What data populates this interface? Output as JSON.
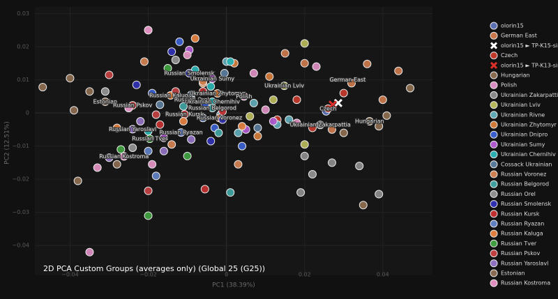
{
  "chart_data": {
    "type": "scatter",
    "title": "2D PCA Custom Groups (averages only) (Global 25 (G25))",
    "x_label": "PC1 (38.39%)",
    "y_label": "PC2 (12.51%)",
    "xlim": [
      -0.049,
      0.0527
    ],
    "ylim": [
      -0.049,
      0.032
    ],
    "xticks": [
      {
        "value": -0.04,
        "label": "−0.04"
      },
      {
        "value": -0.02,
        "label": "−0.02"
      },
      0,
      0.02,
      0.04
    ],
    "yticks": [
      {
        "value": -0.04,
        "label": "−0.04"
      },
      {
        "value": -0.03,
        "label": "−0.03"
      },
      {
        "value": -0.02,
        "label": "−0.02"
      },
      {
        "value": -0.01,
        "label": "−0.01"
      },
      0,
      0.01,
      0.02,
      0.03
    ],
    "grid": true,
    "legend": "right",
    "series": [
      {
        "name": "olorin15",
        "color": "#5b6fb5",
        "x": [
          0.0255
        ],
        "y": [
          0.0005
        ]
      },
      {
        "name": "German East",
        "color": "#c8764a",
        "x": [
          0.032,
          0.036,
          0.044,
          0.02,
          0.015,
          0.04,
          0.027
        ],
        "y": [
          0.009,
          0.0148,
          0.0127,
          0.015,
          0.018,
          0.004,
          -0.005
        ]
      },
      {
        "name": "olorin15 ► TP-K15-sim",
        "color": "#ffffff",
        "symbol": "x",
        "x": [
          0.0286
        ],
        "y": [
          0.003
        ]
      },
      {
        "name": "Czech",
        "color": "#c0392b",
        "x": [
          0.026,
          0.022,
          0.018,
          0.03,
          0.013
        ],
        "y": [
          0.0013,
          -0.0045,
          0.004,
          0.006,
          -0.002
        ]
      },
      {
        "name": "olorin15 ► TP-K13-sim",
        "color": "#e0302a",
        "symbol": "x",
        "x": [
          0.0272
        ],
        "y": [
          0.0025
        ]
      },
      {
        "name": "Hungarian",
        "color": "#8b6b4f",
        "x": [
          0.0366,
          0.047,
          0.035,
          0.041,
          0.039,
          0.03,
          -0.04,
          -0.047,
          -0.038
        ],
        "y": [
          -0.0025,
          0.0075,
          -0.0278,
          -0.0008,
          -0.004,
          -0.006,
          0.0105,
          0.0078,
          -0.0205
        ]
      },
      {
        "name": "Polish",
        "color": "#d98cc0",
        "x": [
          0.0045,
          0.01,
          0.023,
          0.018,
          0.007,
          -0.035,
          -0.02
        ],
        "y": [
          0.005,
          0.001,
          0.014,
          -0.003,
          0.012,
          -0.042,
          0.025
        ]
      },
      {
        "name": "Ukrainian Zakarpattia",
        "color": "#8a8a8a",
        "x": [
          0.024,
          0.019,
          0.034,
          0.039,
          0.02,
          0.027
        ],
        "y": [
          -0.0036,
          -0.024,
          -0.016,
          -0.0245,
          -0.013,
          -0.015
        ]
      },
      {
        "name": "Ukrainian Lviv",
        "color": "#b5b55a",
        "x": [
          0.0148,
          0.006,
          0.02,
          0.012,
          0.02
        ],
        "y": [
          0.0082,
          -0.001,
          0.021,
          0.004,
          -0.0095
        ]
      },
      {
        "name": "Ukrainian Rivne",
        "color": "#5fa8b5",
        "x": [
          0.007,
          0.013,
          0.0,
          0.016,
          0.003
        ],
        "y": [
          0.003,
          -0.0035,
          0.0155,
          -0.002,
          -0.006
        ]
      },
      {
        "name": "Ukrainian Zhytomyr",
        "color": "#d07a3a",
        "x": [
          -0.0023,
          0.002,
          0.008,
          -0.006,
          0.011
        ],
        "y": [
          0.0059,
          0.015,
          -0.007,
          0.009,
          0.011
        ]
      },
      {
        "name": "Ukrainian Dnipro",
        "color": "#3a5fcd",
        "x": [
          -0.0055,
          -0.012,
          -0.003,
          0.004,
          -0.019
        ],
        "y": [
          0.0025,
          0.0215,
          -0.0045,
          -0.01,
          0.006
        ]
      },
      {
        "name": "Ukrainian Sumy",
        "color": "#b05ad0",
        "x": [
          -0.0036,
          -0.0095,
          0.005,
          -0.016,
          0.012
        ],
        "y": [
          0.0103,
          0.019,
          -0.005,
          -0.0075,
          -0.0025
        ]
      },
      {
        "name": "Ukrainian Chernihiv",
        "color": "#2ab0b0",
        "x": [
          -0.0036,
          -0.008,
          0.001,
          -0.02,
          -0.004
        ],
        "y": [
          0.0034,
          0.013,
          0.0155,
          -0.0055,
          0.008
        ]
      },
      {
        "name": "Cossack Ukrainian",
        "color": "#5a7a9a",
        "x": [
          -0.0015,
          -0.009,
          0.008,
          -0.0005,
          -0.017
        ],
        "y": [
          -0.0005,
          0.0055,
          -0.0045,
          0.012,
          0.0025
        ]
      },
      {
        "name": "Russian Voronez",
        "color": "#d08050",
        "x": [
          -0.0018,
          -0.014,
          -0.006,
          0.003,
          -0.021
        ],
        "y": [
          -0.0015,
          -0.0095,
          0.0095,
          -0.0155,
          0.0155
        ]
      },
      {
        "name": "Russian Belgorod",
        "color": "#40a0a0",
        "x": [
          -0.0036,
          -0.011,
          -0.002,
          0.001
        ],
        "y": [
          0.0015,
          0.002,
          -0.006,
          -0.024
        ]
      },
      {
        "name": "Russian Orel",
        "color": "#909090",
        "x": [
          -0.0089,
          -0.024,
          -0.013,
          -0.031,
          0.022
        ],
        "y": [
          0.004,
          -0.0105,
          0.016,
          0.0065,
          -0.0185
        ]
      },
      {
        "name": "Russian Smolensk",
        "color": "#3030b0",
        "x": [
          -0.0095,
          -0.014,
          -0.004,
          -0.023,
          -0.001
        ],
        "y": [
          0.012,
          0.0185,
          -0.0085,
          0.0085,
          -0.002
        ]
      },
      {
        "name": "Russian Kursk",
        "color": "#c03030",
        "x": [
          -0.0107,
          -0.006,
          -0.017,
          -0.0055,
          -0.001
        ],
        "y": [
          -0.0004,
          0.0065,
          -0.0035,
          -0.023,
          0.0005
        ]
      },
      {
        "name": "Russian Ryazan",
        "color": "#6080c0",
        "x": [
          -0.0116,
          -0.02,
          -0.006,
          -0.025,
          -0.018
        ],
        "y": [
          -0.0059,
          -0.0115,
          -0.0015,
          0.0015,
          -0.019
        ]
      },
      {
        "name": "Russian Kaluga",
        "color": "#e08040",
        "x": [
          -0.0143,
          -0.008,
          -0.028,
          -0.011,
          0.004
        ],
        "y": [
          0.0053,
          0.0225,
          -0.0045,
          -0.0025,
          -0.004
        ]
      },
      {
        "name": "Russian Tver",
        "color": "#40a040",
        "x": [
          -0.0196,
          -0.027,
          -0.01,
          -0.02,
          -0.015
        ],
        "y": [
          -0.0078,
          -0.011,
          -0.013,
          -0.031,
          0.0135
        ]
      },
      {
        "name": "Russian Pskov",
        "color": "#c04040",
        "x": [
          -0.024,
          -0.018,
          -0.03,
          -0.013,
          -0.02
        ],
        "y": [
          0.0023,
          -0.0005,
          0.0115,
          0.0065,
          -0.0235
        ]
      },
      {
        "name": "Russian Yaroslavl",
        "color": "#9070c0",
        "x": [
          -0.024,
          -0.016,
          -0.03,
          -0.022,
          -0.009
        ],
        "y": [
          -0.0049,
          -0.0115,
          -0.0135,
          -0.0025,
          -0.008
        ]
      },
      {
        "name": "Estonian",
        "color": "#8a6a50",
        "x": [
          -0.031,
          -0.039,
          -0.028,
          -0.035
        ],
        "y": [
          0.0034,
          0.0008,
          -0.0155,
          0.0065
        ]
      },
      {
        "name": "Russian Kostroma",
        "color": "#e090c0",
        "x": [
          -0.0262,
          -0.033,
          -0.019,
          -0.025,
          -0.01,
          -0.02
        ],
        "y": [
          -0.0131,
          -0.0165,
          -0.0155,
          0.0015,
          0.0175,
          0.025
        ]
      }
    ],
    "annotations": [
      {
        "text": "Russian Smolensk",
        "x": -0.0095,
        "y": 0.012
      },
      {
        "text": "Ukrainian Sumy",
        "x": -0.0036,
        "y": 0.0103
      },
      {
        "text": "Russian Kaluga",
        "x": -0.0143,
        "y": 0.0053
      },
      {
        "text": "Ukrainian Zhytomyr",
        "x": -0.0023,
        "y": 0.0059
      },
      {
        "text": "Polish",
        "x": 0.0045,
        "y": 0.005
      },
      {
        "text": "Ukrainian Lviv",
        "x": 0.0148,
        "y": 0.0082
      },
      {
        "text": "German East",
        "x": 0.031,
        "y": 0.01
      },
      {
        "text": "Estonian",
        "x": -0.031,
        "y": 0.0034
      },
      {
        "text": "Russian Pskov",
        "x": -0.024,
        "y": 0.0023
      },
      {
        "text": "Russian Orel",
        "x": -0.0089,
        "y": 0.004
      },
      {
        "text": "Ukrainian Chernihiv",
        "x": -0.0036,
        "y": 0.0034
      },
      {
        "text": "Russian Belgorod",
        "x": -0.0036,
        "y": 0.0015
      },
      {
        "text": "Russian Kursk",
        "x": -0.0107,
        "y": -0.0004
      },
      {
        "text": "Russian Voronez",
        "x": -0.0018,
        "y": -0.0015
      },
      {
        "text": "Czech",
        "x": 0.026,
        "y": 0.0013
      },
      {
        "text": "Hungarian",
        "x": 0.0366,
        "y": -0.0025
      },
      {
        "text": "Ukrainian Zakarpattia",
        "x": 0.024,
        "y": -0.0036
      },
      {
        "text": "Russian Yaroslavl",
        "x": -0.024,
        "y": -0.0049
      },
      {
        "text": "Russian Ryazan",
        "x": -0.0116,
        "y": -0.0059
      },
      {
        "text": "Russian Tver",
        "x": -0.0196,
        "y": -0.0078
      },
      {
        "text": "Russian Kostroma",
        "x": -0.0262,
        "y": -0.0131
      }
    ]
  }
}
